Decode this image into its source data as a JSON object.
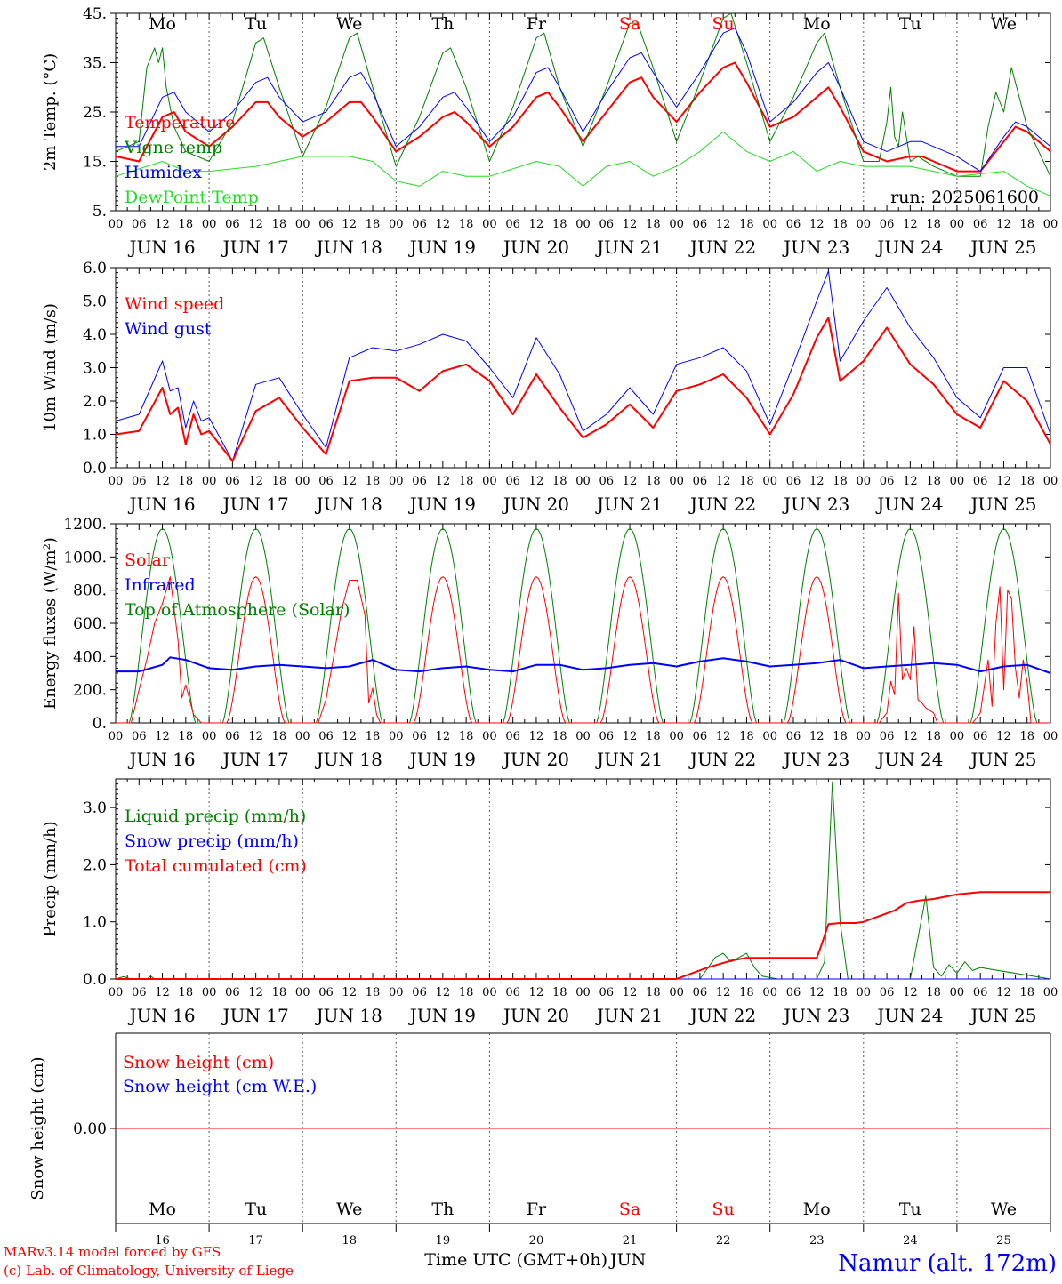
{
  "colors": {
    "red": "#ff0000",
    "green": "#008000",
    "blue": "#0000ff",
    "lime": "#22dd22",
    "axis": "#000000",
    "grid": "#555555"
  },
  "days": [
    "16",
    "17",
    "18",
    "19",
    "20",
    "21",
    "22",
    "23",
    "24",
    "25"
  ],
  "date_labels": [
    "JUN 16",
    "JUN 17",
    "JUN 18",
    "JUN 19",
    "JUN 20",
    "JUN 21",
    "JUN 22",
    "JUN 23",
    "JUN 24",
    "JUN 25"
  ],
  "weekdays": [
    "Mo",
    "Tu",
    "We",
    "Th",
    "Fr",
    "Sa",
    "Su",
    "Mo",
    "Tu",
    "We"
  ],
  "weekend_index": [
    5,
    6
  ],
  "hour_ticks": [
    "00",
    "06",
    "12",
    "18"
  ],
  "final_tick": "00",
  "footer": {
    "model": "MARv3.14 model forced by GFS",
    "credit": "(c) Lab. of Climatology, University of Liege",
    "time_label": "Time UTC (GMT+0h)",
    "month": "JUN",
    "station": "Namur (alt. 172m)"
  },
  "chart_data": [
    {
      "id": "temperature",
      "type": "line",
      "ylabel": "2m Temp. (°C)",
      "ylim": [
        5,
        45
      ],
      "yticks": [
        "5.",
        "15.",
        "25.",
        "35.",
        "45."
      ],
      "run_label": "run: 2025061600",
      "x_unit": "hours since 2025-06-16 00 UTC",
      "series": [
        {
          "name": "Temperature",
          "color": "red",
          "width": 2,
          "x": [
            0,
            6,
            12,
            15,
            18,
            24,
            30,
            36,
            39,
            42,
            48,
            54,
            60,
            63,
            66,
            72,
            78,
            84,
            87,
            90,
            96,
            102,
            108,
            111,
            114,
            120,
            126,
            132,
            135,
            138,
            144,
            150,
            156,
            159,
            162,
            168,
            174,
            180,
            183,
            186,
            192,
            198,
            204,
            207,
            210,
            216,
            222,
            228,
            231,
            234,
            240
          ],
          "y": [
            16,
            15,
            24,
            25,
            21,
            18,
            22,
            27,
            27,
            24,
            20,
            23,
            27,
            27,
            24,
            17,
            20,
            24,
            25,
            23,
            18,
            22,
            28,
            29,
            26,
            19,
            25,
            31,
            32,
            28,
            23,
            29,
            34,
            35,
            31,
            22,
            24,
            28,
            30,
            26,
            17,
            15,
            16,
            16,
            15,
            13,
            13,
            19,
            22,
            21,
            17
          ]
        },
        {
          "name": "Vigne temp",
          "color": "green",
          "width": 1,
          "x": [
            0,
            6,
            8,
            10,
            11,
            12,
            13,
            15,
            18,
            24,
            30,
            36,
            38,
            42,
            48,
            54,
            60,
            62,
            66,
            72,
            78,
            84,
            86,
            90,
            96,
            102,
            108,
            110,
            114,
            120,
            126,
            132,
            134,
            138,
            144,
            150,
            156,
            158,
            162,
            168,
            174,
            180,
            182,
            186,
            192,
            196,
            198,
            199,
            200,
            201,
            202,
            204,
            206,
            210,
            216,
            222,
            224,
            226,
            228,
            230,
            234,
            240
          ],
          "y": [
            17,
            19,
            34,
            38,
            35,
            38,
            30,
            22,
            17,
            15,
            23,
            39,
            40,
            30,
            16,
            26,
            40,
            41,
            30,
            14,
            24,
            37,
            38,
            30,
            15,
            26,
            40,
            41,
            30,
            18,
            30,
            43,
            43,
            34,
            19,
            31,
            44,
            45,
            35,
            19,
            28,
            39,
            41,
            30,
            15,
            15,
            23,
            30,
            20,
            18,
            25,
            15,
            16,
            14,
            12,
            12,
            22,
            29,
            25,
            34,
            22,
            12
          ]
        },
        {
          "name": "Humidex",
          "color": "blue",
          "width": 1,
          "x": [
            0,
            6,
            12,
            15,
            18,
            24,
            30,
            36,
            39,
            42,
            48,
            54,
            60,
            63,
            66,
            72,
            78,
            84,
            87,
            90,
            96,
            102,
            108,
            111,
            114,
            120,
            126,
            132,
            135,
            138,
            144,
            150,
            156,
            159,
            162,
            168,
            174,
            180,
            183,
            186,
            192,
            198,
            204,
            207,
            210,
            216,
            222,
            228,
            231,
            234,
            240
          ],
          "y": [
            18,
            18,
            28,
            29,
            25,
            21,
            25,
            31,
            32,
            28,
            23,
            25,
            32,
            33,
            29,
            18,
            22,
            28,
            29,
            26,
            19,
            24,
            33,
            34,
            30,
            21,
            29,
            36,
            37,
            33,
            26,
            33,
            41,
            42,
            37,
            23,
            27,
            33,
            35,
            30,
            19,
            17,
            19,
            19,
            18,
            16,
            13,
            20,
            23,
            22,
            18
          ]
        },
        {
          "name": "DewPoint Temp",
          "color": "lime",
          "width": 1,
          "x": [
            0,
            12,
            18,
            24,
            36,
            48,
            60,
            66,
            72,
            78,
            84,
            90,
            96,
            108,
            114,
            120,
            126,
            132,
            138,
            144,
            150,
            156,
            162,
            168,
            174,
            180,
            186,
            192,
            204,
            216,
            228,
            234,
            240
          ],
          "y": [
            12,
            15,
            13,
            13,
            14,
            16,
            16,
            15,
            11,
            10,
            13,
            12,
            12,
            15,
            14,
            10,
            14,
            15,
            12,
            14,
            17,
            21,
            17,
            15,
            17,
            13,
            15,
            14,
            14,
            12,
            13,
            10,
            8
          ]
        }
      ]
    },
    {
      "id": "wind",
      "type": "line",
      "ylabel": "10m Wind (m/s)",
      "ylim": [
        0,
        6
      ],
      "yticks": [
        "0.0",
        "1.0",
        "2.0",
        "3.0",
        "4.0",
        "5.0",
        "6.0"
      ],
      "threshold": 5.0,
      "x_unit": "hours since 2025-06-16 00 UTC",
      "series": [
        {
          "name": "Wind speed",
          "color": "red",
          "width": 2,
          "x": [
            0,
            6,
            12,
            14,
            16,
            18,
            20,
            22,
            24,
            30,
            36,
            42,
            48,
            54,
            60,
            66,
            72,
            78,
            84,
            90,
            96,
            102,
            108,
            114,
            120,
            126,
            132,
            138,
            144,
            150,
            156,
            162,
            168,
            174,
            180,
            183,
            186,
            192,
            198,
            204,
            210,
            216,
            222,
            228,
            234,
            240
          ],
          "y": [
            1.0,
            1.1,
            2.4,
            1.6,
            1.8,
            0.7,
            1.6,
            1.0,
            1.1,
            0.2,
            1.7,
            2.1,
            1.2,
            0.4,
            2.6,
            2.7,
            2.7,
            2.3,
            2.9,
            3.1,
            2.6,
            1.6,
            2.8,
            1.8,
            0.9,
            1.3,
            1.9,
            1.2,
            2.3,
            2.5,
            2.8,
            2.1,
            1.0,
            2.2,
            3.9,
            4.5,
            2.6,
            3.2,
            4.2,
            3.1,
            2.5,
            1.6,
            1.2,
            2.6,
            2.0,
            0.7
          ]
        },
        {
          "name": "Wind gust",
          "color": "blue",
          "width": 1,
          "x": [
            0,
            6,
            12,
            14,
            16,
            18,
            20,
            22,
            24,
            30,
            36,
            42,
            48,
            54,
            60,
            66,
            72,
            78,
            84,
            90,
            96,
            102,
            108,
            114,
            120,
            126,
            132,
            138,
            144,
            150,
            156,
            162,
            168,
            174,
            180,
            183,
            186,
            192,
            198,
            204,
            210,
            216,
            222,
            228,
            234,
            240
          ],
          "y": [
            1.4,
            1.6,
            3.2,
            2.3,
            2.4,
            1.2,
            2.0,
            1.4,
            1.5,
            0.2,
            2.5,
            2.7,
            1.6,
            0.6,
            3.3,
            3.6,
            3.5,
            3.7,
            4.0,
            3.8,
            3.0,
            2.1,
            3.9,
            2.8,
            1.1,
            1.6,
            2.4,
            1.6,
            3.1,
            3.3,
            3.6,
            2.9,
            1.3,
            3.1,
            5.0,
            5.9,
            3.2,
            4.4,
            5.4,
            4.2,
            3.3,
            2.1,
            1.5,
            3.0,
            3.0,
            1.0
          ]
        }
      ]
    },
    {
      "id": "energy",
      "type": "line",
      "ylabel": "Energy fluxes (W/m²)",
      "ylim": [
        0,
        1200
      ],
      "yticks": [
        "0.",
        "200.",
        "400.",
        "600.",
        "800.",
        "1000.",
        "1200."
      ],
      "x_unit": "hours since 2025-06-16 00 UTC",
      "solar_peak": 880,
      "toa_peak": 1170,
      "series": [
        {
          "name": "Solar",
          "color": "red",
          "width": 1
        },
        {
          "name": "Infrared",
          "color": "blue",
          "width": 2,
          "x": [
            0,
            6,
            12,
            14,
            18,
            24,
            30,
            36,
            42,
            48,
            54,
            60,
            66,
            72,
            78,
            84,
            90,
            96,
            102,
            108,
            114,
            120,
            126,
            132,
            138,
            144,
            150,
            156,
            162,
            168,
            174,
            180,
            186,
            192,
            198,
            204,
            210,
            216,
            222,
            228,
            234,
            240
          ],
          "y": [
            310,
            310,
            350,
            395,
            380,
            330,
            320,
            340,
            350,
            340,
            330,
            340,
            380,
            320,
            310,
            330,
            340,
            320,
            310,
            350,
            350,
            320,
            330,
            350,
            360,
            340,
            370,
            390,
            370,
            340,
            350,
            360,
            380,
            330,
            340,
            350,
            360,
            350,
            310,
            340,
            350,
            300
          ]
        },
        {
          "name": "Top of Atmosphere (Solar)",
          "color": "green",
          "width": 1
        }
      ],
      "solar_deviation": {
        "x": [
          0,
          4,
          6,
          8,
          10,
          12,
          14,
          16,
          17,
          18,
          20,
          22,
          24
        ],
        "y": [
          0,
          0,
          200,
          380,
          600,
          720,
          880,
          500,
          150,
          230,
          50,
          0,
          0
        ]
      },
      "solar_day8": {
        "x": [
          0,
          4,
          6,
          7,
          8,
          9,
          10,
          11,
          12,
          13,
          14,
          15,
          16,
          18,
          19,
          20,
          24
        ],
        "y": [
          0,
          0,
          60,
          250,
          170,
          780,
          260,
          330,
          260,
          580,
          140,
          120,
          90,
          60,
          0,
          0,
          0
        ]
      },
      "solar_day9": {
        "x": [
          0,
          4,
          6,
          8,
          9,
          10,
          11,
          12,
          13,
          14,
          15,
          16,
          17,
          18,
          19,
          20,
          24
        ],
        "y": [
          0,
          0,
          60,
          380,
          100,
          600,
          820,
          200,
          800,
          750,
          330,
          150,
          380,
          250,
          0,
          0,
          0
        ]
      },
      "solar_day2": {
        "x": [
          0,
          4,
          6,
          8,
          10,
          12,
          14,
          16,
          17,
          18,
          19,
          20,
          24
        ],
        "y": [
          0,
          0,
          140,
          400,
          680,
          860,
          860,
          650,
          120,
          210,
          50,
          0,
          0
        ]
      }
    },
    {
      "id": "precip",
      "type": "line",
      "ylabel": "Precip (mm/h)",
      "ylim": [
        0,
        3.5
      ],
      "yticks": [
        "0.0",
        "1.0",
        "2.0",
        "3.0"
      ],
      "x_unit": "hours since 2025-06-16 00 UTC",
      "series": [
        {
          "name": "Liquid precip (mm/h)",
          "color": "green",
          "width": 1,
          "x": [
            0,
            2,
            4,
            8,
            9,
            10,
            12,
            144,
            150,
            154,
            156,
            158,
            162,
            164,
            166,
            170,
            180,
            182,
            184,
            186,
            188,
            190,
            194,
            198,
            204,
            208,
            210,
            212,
            214,
            216,
            218,
            220,
            222,
            240
          ],
          "y": [
            0,
            0.04,
            0,
            0,
            0.05,
            0,
            0,
            0,
            0,
            0.38,
            0.45,
            0.3,
            0.45,
            0.2,
            0.05,
            0,
            0,
            0.3,
            3.45,
            1.0,
            0,
            0,
            0,
            0,
            0,
            1.45,
            0.2,
            0.05,
            0.25,
            0.1,
            0.3,
            0.15,
            0.2,
            0
          ]
        },
        {
          "name": "Snow precip (mm/h)",
          "color": "blue",
          "width": 1,
          "x": [
            0,
            240
          ],
          "y": [
            0,
            0
          ]
        },
        {
          "name": "Total cumulated (cm)",
          "color": "red",
          "width": 2,
          "x": [
            0,
            144,
            152,
            158,
            162,
            168,
            180,
            181,
            183,
            186,
            190,
            192,
            200,
            203,
            206,
            210,
            216,
            222,
            228,
            240
          ],
          "y": [
            0,
            0,
            0.2,
            0.32,
            0.37,
            0.37,
            0.37,
            0.55,
            0.96,
            0.98,
            0.98,
            1.0,
            1.2,
            1.33,
            1.37,
            1.4,
            1.48,
            1.52,
            1.52,
            1.52
          ]
        }
      ]
    },
    {
      "id": "snow",
      "type": "line",
      "ylabel": "Snow height (cm)",
      "ylim": [
        -1,
        1
      ],
      "yticks": [
        "0.00"
      ],
      "x_unit": "hours since 2025-06-16 00 UTC",
      "series": [
        {
          "name": "Snow height (cm)",
          "color": "red",
          "width": 1,
          "x": [
            0,
            240
          ],
          "y": [
            0,
            0
          ]
        },
        {
          "name": "Snow height (cm W.E.)",
          "color": "blue",
          "width": 1,
          "x": [
            0,
            240
          ],
          "y": [
            0,
            0
          ]
        }
      ]
    }
  ]
}
